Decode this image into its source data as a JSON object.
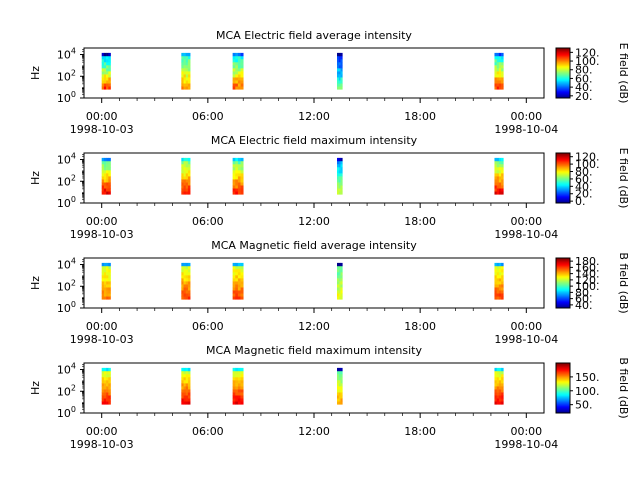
{
  "chart_data": [
    {
      "type": "heatmap",
      "title": "MCA  Electric field average intensity",
      "ylabel": "Hz",
      "colorbar_label": "E field (dB)",
      "colorbar_ticks": [
        "120.",
        "100.",
        "80.",
        "60.",
        "40.",
        "20."
      ],
      "colorbar_tick_values": [
        120,
        100,
        80,
        60,
        40,
        20
      ],
      "colorbar_range": [
        15,
        130
      ],
      "x_ticks": [
        "00:00",
        "06:00",
        "12:00",
        "18:00",
        "00:00"
      ],
      "x_tick_dates": [
        "1998-10-03",
        "1998-10-04"
      ],
      "y_ticks": [
        "10^4",
        "10^2",
        "10^0"
      ],
      "segments": [
        {
          "start_hour": 0.0,
          "end_hour": 0.5,
          "low_db": 45,
          "high_db": 110,
          "top_db": 20
        },
        {
          "start_hour": 4.5,
          "end_hour": 5.0,
          "low_db": 60,
          "high_db": 100,
          "top_db": 45
        },
        {
          "start_hour": 7.4,
          "end_hour": 8.0,
          "low_db": 55,
          "high_db": 105,
          "top_db": 40
        },
        {
          "start_hour": 13.3,
          "end_hour": 13.6,
          "low_db": 30,
          "high_db": 70,
          "top_db": 15
        },
        {
          "start_hour": 22.2,
          "end_hour": 22.7,
          "low_db": 55,
          "high_db": 110,
          "top_db": 40
        }
      ]
    },
    {
      "type": "heatmap",
      "title": "MCA  Electric field maximum intensity",
      "ylabel": "Hz",
      "colorbar_label": "E field (dB)",
      "colorbar_ticks": [
        "120.",
        "100.",
        "80.",
        "60.",
        "40.",
        "20.",
        "0."
      ],
      "colorbar_tick_values": [
        120,
        100,
        80,
        60,
        40,
        20,
        0
      ],
      "colorbar_range": [
        -5,
        130
      ],
      "x_ticks": [
        "00:00",
        "06:00",
        "12:00",
        "18:00",
        "00:00"
      ],
      "x_tick_dates": [
        "1998-10-03",
        "1998-10-04"
      ],
      "y_ticks": [
        "10^4",
        "10^2",
        "10^0"
      ],
      "segments": [
        {
          "start_hour": 0.0,
          "end_hour": 0.5,
          "low_db": 50,
          "high_db": 115,
          "top_db": 30
        },
        {
          "start_hour": 4.5,
          "end_hour": 5.0,
          "low_db": 60,
          "high_db": 110,
          "top_db": 45
        },
        {
          "start_hour": 7.4,
          "end_hour": 8.0,
          "low_db": 55,
          "high_db": 110,
          "top_db": 40
        },
        {
          "start_hour": 13.3,
          "end_hour": 13.6,
          "low_db": 30,
          "high_db": 75,
          "top_db": 5
        },
        {
          "start_hour": 22.2,
          "end_hour": 22.7,
          "low_db": 55,
          "high_db": 115,
          "top_db": 40
        }
      ]
    },
    {
      "type": "heatmap",
      "title": "MCA  Magnetic field average intensity",
      "ylabel": "Hz",
      "colorbar_label": "B field (dB)",
      "colorbar_ticks": [
        "180.",
        "160.",
        "140.",
        "120.",
        "100.",
        "80.",
        "60.",
        "40."
      ],
      "colorbar_tick_values": [
        180,
        160,
        140,
        120,
        100,
        80,
        60,
        40
      ],
      "colorbar_range": [
        30,
        190
      ],
      "x_ticks": [
        "00:00",
        "06:00",
        "12:00",
        "18:00",
        "00:00"
      ],
      "x_tick_dates": [
        "1998-10-03",
        "1998-10-04"
      ],
      "y_ticks": [
        "10^4",
        "10^2",
        "10^0"
      ],
      "segments": [
        {
          "start_hour": 0.0,
          "end_hour": 0.5,
          "low_db": 120,
          "high_db": 150,
          "top_db": 75
        },
        {
          "start_hour": 4.5,
          "end_hour": 5.0,
          "low_db": 120,
          "high_db": 160,
          "top_db": 75
        },
        {
          "start_hour": 7.4,
          "end_hour": 8.0,
          "low_db": 120,
          "high_db": 160,
          "top_db": 75
        },
        {
          "start_hour": 13.3,
          "end_hour": 13.6,
          "low_db": 100,
          "high_db": 130,
          "top_db": 35
        },
        {
          "start_hour": 22.2,
          "end_hour": 22.7,
          "low_db": 120,
          "high_db": 160,
          "top_db": 75
        }
      ]
    },
    {
      "type": "heatmap",
      "title": "MCA  Magnetic field maximum intensity",
      "ylabel": "Hz",
      "colorbar_label": "B field (dB)",
      "colorbar_ticks": [
        "150.",
        "100.",
        "50."
      ],
      "colorbar_tick_values": [
        150,
        100,
        50
      ],
      "colorbar_range": [
        20,
        200
      ],
      "x_ticks": [
        "00:00",
        "06:00",
        "12:00",
        "18:00",
        "00:00"
      ],
      "x_tick_dates": [
        "1998-10-03",
        "1998-10-04"
      ],
      "y_ticks": [
        "10^4",
        "10^2",
        "10^0"
      ],
      "segments": [
        {
          "start_hour": 0.0,
          "end_hour": 0.5,
          "low_db": 120,
          "high_db": 175,
          "top_db": 85
        },
        {
          "start_hour": 4.5,
          "end_hour": 5.0,
          "low_db": 120,
          "high_db": 180,
          "top_db": 85
        },
        {
          "start_hour": 7.4,
          "end_hour": 8.0,
          "low_db": 120,
          "high_db": 180,
          "top_db": 85
        },
        {
          "start_hour": 13.3,
          "end_hour": 13.6,
          "low_db": 100,
          "high_db": 150,
          "top_db": 30
        },
        {
          "start_hour": 22.2,
          "end_hour": 22.7,
          "low_db": 120,
          "high_db": 180,
          "top_db": 85
        }
      ]
    }
  ],
  "x_axis": {
    "range_hours": [
      -1.0,
      25.0
    ]
  },
  "y_axis": {
    "scale": "log",
    "range_exp": [
      0,
      4.6
    ]
  },
  "colormap": "jet"
}
